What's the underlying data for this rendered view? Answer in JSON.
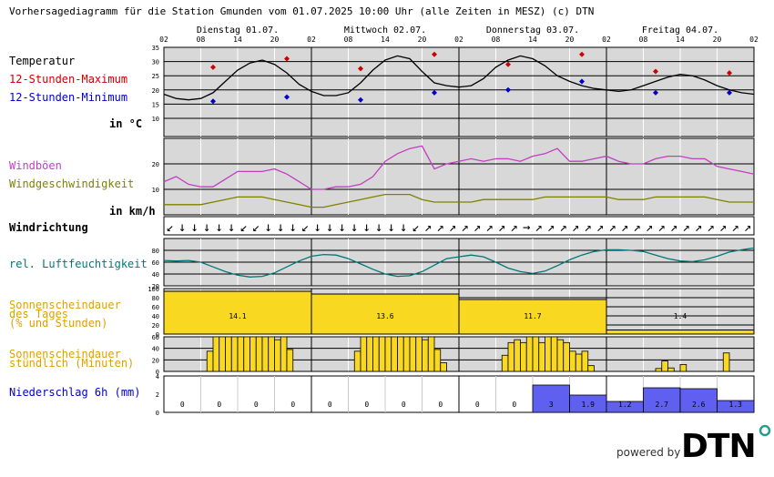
{
  "header": {
    "title": "Vorhersagediagramm für die Station Gmunden vom 01.07.2025 10:00 Uhr (alle Zeiten in MESZ)   (c) DTN"
  },
  "days": [
    "Dienstag 01.07.",
    "Mittwoch 02.07.",
    "Donnerstag 03.07.",
    "Freitag 04.07."
  ],
  "hour_ticks": [
    "02",
    "08",
    "14",
    "20",
    "02",
    "08",
    "14",
    "20",
    "02",
    "08",
    "14",
    "20",
    "02",
    "08",
    "14",
    "20",
    "02"
  ],
  "labels": {
    "temperatur": "Temperatur",
    "max": "12-Stunden-Maximum",
    "min": "12-Stunden-Minimum",
    "temp_unit": "in °C",
    "windboen": "Windböen",
    "windgeschw": "Windgeschwindigkeit",
    "wind_unit": "in km/h",
    "windrichtung": "Windrichtung",
    "feuchte": "rel. Luftfeuchtigkeit",
    "sonne_tag_1": "Sonnenscheindauer",
    "sonne_tag_2": "des Tages",
    "sonne_tag_3": "(% und Stunden)",
    "sonne_std_1": "Sonnenscheindauer",
    "sonne_std_2": "stündlich (Minuten)",
    "niederschlag": "Niederschlag 6h (mm)"
  },
  "branding": {
    "powered_by": "powered by",
    "logo": "DTN"
  },
  "colors": {
    "plot_bg": "#d8d8d8",
    "temp": "#000000",
    "max": "#cc0000",
    "min": "#0000cc",
    "gust": "#c040c0",
    "wind": "#808000",
    "humidity": "#007878",
    "sun": "#f8d820",
    "precip": "#6060f0",
    "precip_label": "#0000cc",
    "sun_label": "#e0a000",
    "humid_label": "#007878",
    "wind_label": "#808000",
    "gust_label": "#c040c0"
  },
  "chart_data": {
    "type": "line",
    "x_unit": "hour",
    "temperature": {
      "ylim": [
        10,
        35
      ],
      "ticks": [
        10,
        15,
        20,
        25,
        30,
        35
      ],
      "hours": [
        0,
        2,
        4,
        6,
        8,
        10,
        12,
        14,
        16,
        18,
        20,
        22,
        24,
        26,
        28,
        30,
        32,
        34,
        36,
        38,
        40,
        42,
        44,
        46,
        48,
        50,
        52,
        54,
        56,
        58,
        60,
        62,
        64,
        66,
        68,
        70,
        72,
        74,
        76,
        78,
        80,
        82,
        84,
        86,
        88,
        90,
        92,
        94,
        96
      ],
      "values": [
        18.5,
        17,
        16.5,
        17,
        19,
        23,
        27,
        29.5,
        30.5,
        29,
        26,
        22,
        19.5,
        18,
        18,
        19,
        22.5,
        27,
        30.5,
        32,
        31,
        26.5,
        22.5,
        21.5,
        21,
        21.5,
        24,
        28,
        30.5,
        32,
        31,
        28.5,
        25,
        23,
        21.5,
        20.5,
        20,
        19.5,
        20,
        21.5,
        23,
        24.5,
        25.5,
        25,
        23.5,
        21.5,
        20,
        19,
        18.5
      ],
      "max_points": [
        {
          "hour": 8,
          "value": 28
        },
        {
          "hour": 20,
          "value": 31
        },
        {
          "hour": 32,
          "value": 27.5
        },
        {
          "hour": 44,
          "value": 32.5
        },
        {
          "hour": 56,
          "value": 29
        },
        {
          "hour": 68,
          "value": 32.5
        },
        {
          "hour": 80,
          "value": 26.5
        },
        {
          "hour": 92,
          "value": 26
        }
      ],
      "min_points": [
        {
          "hour": 8,
          "value": 16
        },
        {
          "hour": 20,
          "value": 17.5
        },
        {
          "hour": 32,
          "value": 16.5
        },
        {
          "hour": 44,
          "value": 19
        },
        {
          "hour": 56,
          "value": 20
        },
        {
          "hour": 68,
          "value": 23
        },
        {
          "hour": 80,
          "value": 19
        },
        {
          "hour": 92,
          "value": 19
        }
      ]
    },
    "wind": {
      "ylim": [
        0,
        30
      ],
      "ticks": [
        10,
        20
      ],
      "hours": [
        0,
        2,
        4,
        6,
        8,
        10,
        12,
        14,
        16,
        18,
        20,
        22,
        24,
        26,
        28,
        30,
        32,
        34,
        36,
        38,
        40,
        42,
        44,
        46,
        48,
        50,
        52,
        54,
        56,
        58,
        60,
        62,
        64,
        66,
        68,
        70,
        72,
        74,
        76,
        78,
        80,
        82,
        84,
        86,
        88,
        90,
        92,
        94,
        96
      ],
      "gusts": [
        13,
        15,
        12,
        11,
        11,
        14,
        17,
        17,
        17,
        18,
        16,
        13,
        10,
        10,
        11,
        11,
        12,
        15,
        21,
        24,
        26,
        27,
        18,
        20,
        21,
        22,
        21,
        22,
        22,
        21,
        23,
        24,
        26,
        21,
        21,
        22,
        23,
        21,
        20,
        20,
        22,
        23,
        23,
        22,
        22,
        19,
        18,
        17,
        16
      ],
      "speed": [
        4,
        4,
        4,
        4,
        5,
        6,
        7,
        7,
        7,
        6,
        5,
        4,
        3,
        3,
        4,
        5,
        6,
        7,
        8,
        8,
        8,
        6,
        5,
        5,
        5,
        5,
        6,
        6,
        6,
        6,
        6,
        7,
        7,
        7,
        7,
        7,
        7,
        6,
        6,
        6,
        7,
        7,
        7,
        7,
        7,
        6,
        5,
        5,
        5
      ],
      "labels_count": 0
    },
    "wind_direction": {
      "arrows": [
        "↙",
        "↓",
        "↓",
        "↓",
        "↓",
        "↓",
        "↙",
        "↙",
        "↓",
        "↓",
        "↓",
        "↙",
        "↓",
        "↓",
        "↓",
        "↓",
        "↓",
        "↓",
        "↓",
        "↓",
        "↙",
        "↗",
        "↗",
        "↗",
        "↗",
        "↗",
        "↗",
        "↗",
        "↗",
        "→",
        "↗",
        "↗",
        "↗",
        "↗",
        "↗",
        "↗",
        "↗",
        "↗",
        "↗",
        "↗",
        "↗",
        "↗",
        "↗",
        "↗",
        "↗",
        "↗",
        "↗",
        "↗"
      ]
    },
    "humidity": {
      "ylim": [
        20,
        100
      ],
      "ticks": [
        20,
        40,
        60,
        80
      ],
      "hours": [
        0,
        2,
        4,
        6,
        8,
        10,
        12,
        14,
        16,
        18,
        20,
        22,
        24,
        26,
        28,
        30,
        32,
        34,
        36,
        38,
        40,
        42,
        44,
        46,
        48,
        50,
        52,
        54,
        56,
        58,
        60,
        62,
        64,
        66,
        68,
        70,
        72,
        74,
        76,
        78,
        80,
        82,
        84,
        86,
        88,
        90,
        92,
        94,
        96
      ],
      "values": [
        63,
        62,
        63,
        60,
        52,
        44,
        38,
        35,
        36,
        42,
        52,
        62,
        70,
        73,
        72,
        66,
        57,
        48,
        40,
        36,
        37,
        44,
        55,
        66,
        69,
        72,
        69,
        60,
        50,
        44,
        41,
        45,
        54,
        64,
        72,
        78,
        81,
        81,
        80,
        78,
        72,
        66,
        62,
        61,
        64,
        70,
        77,
        81,
        84
      ]
    },
    "sunshine_daily": {
      "ylim": [
        0,
        100
      ],
      "ticks": [
        0,
        20,
        40,
        60,
        80,
        100
      ],
      "percent": [
        94,
        88,
        76,
        9
      ],
      "hours_text": [
        "14.1",
        "13.6",
        "11.7",
        "1.4"
      ]
    },
    "sunshine_hourly": {
      "ylim": [
        0,
        60
      ],
      "ticks": [
        0,
        20,
        40,
        60
      ],
      "start_hour": 0,
      "minutes": [
        0,
        0,
        0,
        0,
        0,
        0,
        0,
        35,
        60,
        60,
        60,
        60,
        60,
        60,
        60,
        60,
        60,
        60,
        55,
        60,
        38,
        0,
        0,
        0,
        0,
        0,
        0,
        0,
        0,
        0,
        0,
        35,
        60,
        60,
        60,
        60,
        60,
        60,
        60,
        60,
        60,
        60,
        55,
        60,
        38,
        15,
        0,
        0,
        0,
        0,
        0,
        0,
        0,
        0,
        0,
        28,
        50,
        55,
        50,
        60,
        60,
        50,
        60,
        60,
        55,
        50,
        35,
        30,
        35,
        10,
        0,
        0,
        0,
        0,
        0,
        0,
        0,
        0,
        0,
        0,
        5,
        18,
        6,
        0,
        12,
        0,
        0,
        0,
        0,
        0,
        0,
        32,
        0,
        0,
        0,
        0
      ]
    },
    "precipitation_6h": {
      "ylim": [
        0,
        4
      ],
      "ticks": [
        0,
        2,
        4
      ],
      "values": [
        0,
        0,
        0,
        0,
        0,
        0,
        0,
        0,
        0,
        0,
        3,
        1.9,
        1.2,
        2.7,
        2.6,
        1.3
      ],
      "labels": [
        "0",
        "0",
        "0",
        "0",
        "0",
        "0",
        "0",
        "0",
        "0",
        "0",
        "3",
        "1.9",
        "1.2",
        "2.7",
        "2.6",
        "1.3"
      ]
    }
  }
}
